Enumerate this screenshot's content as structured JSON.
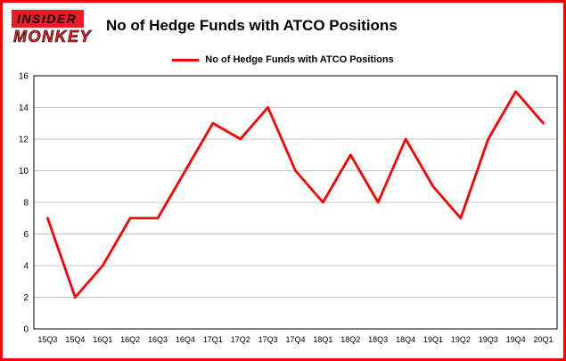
{
  "brand": {
    "name": "Insider Monkey",
    "line1": "INSIDER",
    "line2": "MONKEY",
    "red": "#ed1c24"
  },
  "header": {
    "title": "No of Hedge Funds with ATCO Positions"
  },
  "legend": {
    "label": "No of Hedge Funds with ATCO Positions",
    "color": "#ff0000"
  },
  "chart_data": {
    "type": "line",
    "title": "No of Hedge Funds with ATCO Positions",
    "categories": [
      "15Q3",
      "15Q4",
      "16Q1",
      "16Q2",
      "16Q3",
      "16Q4",
      "17Q1",
      "17Q2",
      "17Q3",
      "17Q4",
      "18Q1",
      "18Q2",
      "18Q3",
      "18Q4",
      "19Q1",
      "19Q2",
      "19Q3",
      "19Q4",
      "20Q1"
    ],
    "series": [
      {
        "name": "No of Hedge Funds with ATCO Positions",
        "color": "#ff0000",
        "values": [
          7,
          2,
          4,
          7,
          7,
          10,
          13,
          12,
          14,
          10,
          8,
          11,
          8,
          12,
          9,
          7,
          12,
          15,
          13
        ]
      }
    ],
    "xlabel": "",
    "ylabel": "",
    "ylim": [
      0,
      16
    ],
    "ytick_step": 2,
    "grid": true,
    "grid_color": "#c6c6c6",
    "axis_color": "#000000",
    "legend_position": "top"
  }
}
